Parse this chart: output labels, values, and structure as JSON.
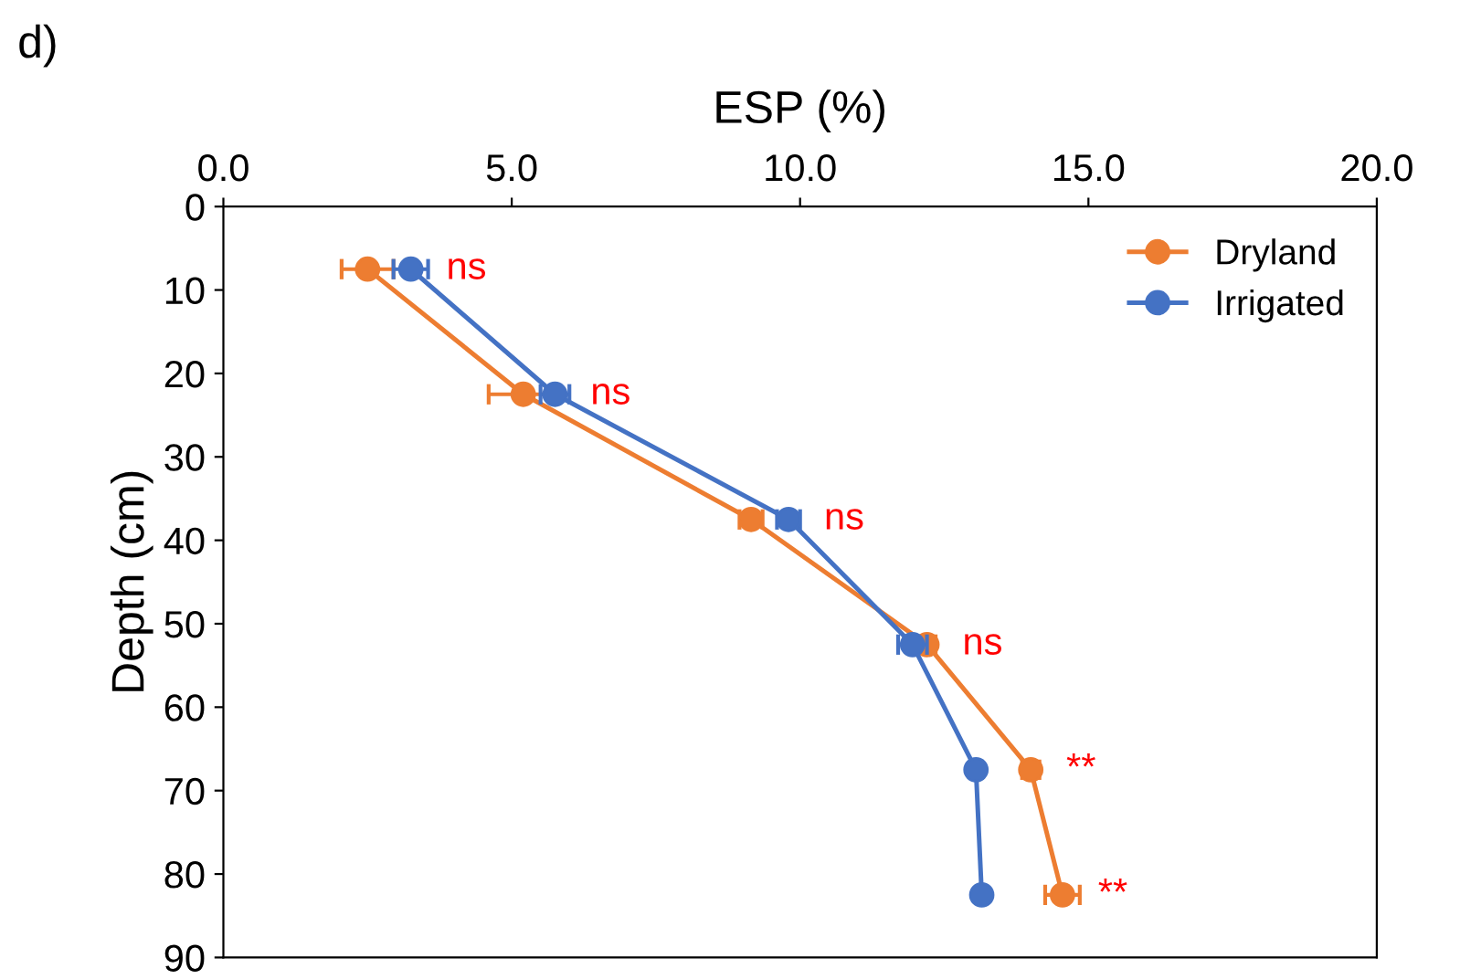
{
  "chart_data": {
    "type": "line",
    "title": "d)",
    "xlabel": "ESP (%)",
    "ylabel": "Depth (cm)",
    "marker": "circle",
    "legend": "top right",
    "series": [
      {
        "name": "Dryland",
        "color": "#ed7d31",
        "x": [
          2.5,
          5.2,
          9.15,
          12.2,
          14.0,
          14.55
        ],
        "values": [
          7.5,
          22.5,
          37.5,
          52.5,
          67.5,
          82.5
        ],
        "xerrors": [
          0.45,
          0.6,
          0.2,
          0.15,
          0.15,
          0.3
        ]
      },
      {
        "name": "Irrigated",
        "color": "#4472c4",
        "x": [
          3.25,
          5.75,
          9.8,
          11.95,
          13.05,
          13.15
        ],
        "values": [
          7.5,
          22.5,
          37.5,
          52.5,
          67.5,
          82.5
        ],
        "xerrors": [
          0.3,
          0.25,
          0.2,
          0.25,
          0.1,
          0.05
        ]
      }
    ],
    "xlim": [
      0,
      20
    ],
    "ylim": [
      90,
      0
    ],
    "xticks": [
      {
        "value": 0,
        "label": "0.0"
      },
      {
        "value": 5,
        "label": "5.0"
      },
      {
        "value": 10,
        "label": "10.0"
      },
      {
        "value": 15,
        "label": "15.0"
      },
      {
        "value": 20,
        "label": "20.0"
      }
    ],
    "yticks": [
      0,
      10,
      20,
      30,
      40,
      50,
      60,
      70,
      80,
      90
    ],
    "annotations": [
      {
        "text": "ns",
        "x": 3.25,
        "y": 7.5
      },
      {
        "text": "ns",
        "x": 5.75,
        "y": 22.5
      },
      {
        "text": "ns",
        "x": 9.8,
        "y": 37.5
      },
      {
        "text": "ns",
        "x": 12.2,
        "y": 52.5
      },
      {
        "text": "**",
        "x": 14.0,
        "y": 67.5
      },
      {
        "text": "**",
        "x": 14.55,
        "y": 82.5
      }
    ]
  }
}
